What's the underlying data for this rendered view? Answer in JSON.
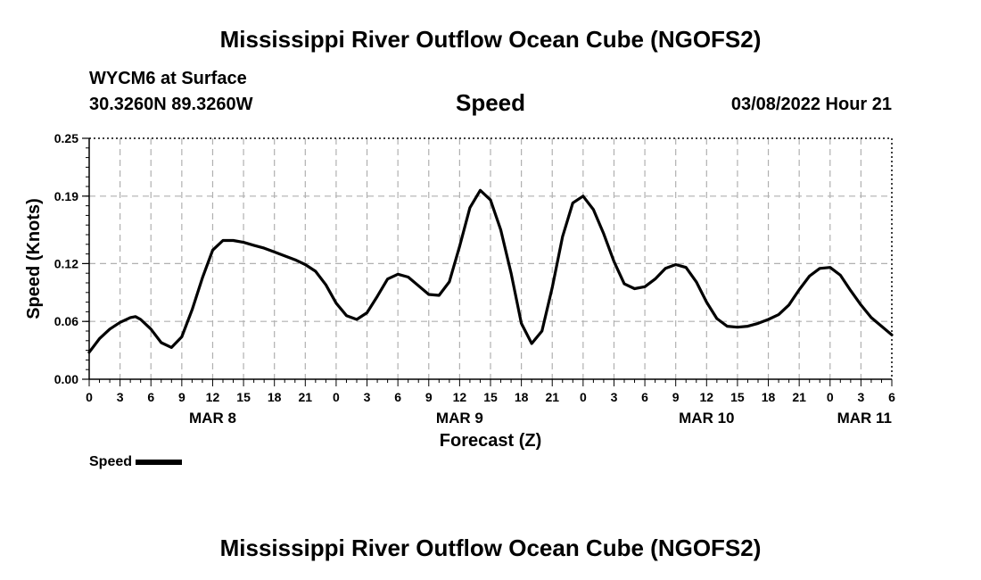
{
  "page": {
    "title_top": "Mississippi River Outflow Ocean Cube (NGOFS2)",
    "title_bottom": "Mississippi River Outflow Ocean Cube (NGOFS2)",
    "station": "WYCM6 at Surface",
    "coords": "30.3260N  89.3260W",
    "datetime": "03/08/2022 Hour 21"
  },
  "legend": {
    "label": "Speed"
  },
  "chart_data": {
    "type": "line",
    "title": "Speed",
    "xlabel": "Forecast (Z)",
    "ylabel": "Speed (Knots)",
    "ylim": [
      0,
      0.25
    ],
    "xlim": [
      0,
      78
    ],
    "x_unit": "hours from 00Z MAR 8",
    "yticks": [
      0.0,
      0.06,
      0.12,
      0.19,
      0.25
    ],
    "ytick_labels": [
      "0.00",
      "0.06",
      "0.12",
      "0.19",
      "0.25"
    ],
    "xticks": [
      0,
      3,
      6,
      9,
      12,
      15,
      18,
      21,
      24,
      27,
      30,
      33,
      36,
      39,
      42,
      45,
      48,
      51,
      54,
      57,
      60,
      63,
      66,
      69,
      72,
      75,
      78
    ],
    "xtick_labels": [
      "0",
      "3",
      "6",
      "9",
      "12",
      "15",
      "18",
      "21",
      "0",
      "3",
      "6",
      "9",
      "12",
      "15",
      "18",
      "21",
      "0",
      "3",
      "6",
      "9",
      "12",
      "15",
      "18",
      "21",
      "0",
      "3",
      "6"
    ],
    "date_labels": [
      {
        "label": "MAR 8",
        "x": 12
      },
      {
        "label": "MAR 9",
        "x": 36
      },
      {
        "label": "MAR 10",
        "x": 60
      },
      {
        "label": "MAR 11",
        "x": 78
      }
    ],
    "grid": true,
    "series": [
      {
        "name": "Speed",
        "color": "#000000",
        "x": [
          0,
          1,
          2,
          3,
          4,
          4.5,
          5,
          6,
          7,
          8,
          9,
          10,
          11,
          12,
          13,
          14,
          15,
          16,
          17,
          18,
          19,
          20,
          21,
          22,
          23,
          24,
          25,
          26,
          27,
          28,
          29,
          30,
          31,
          32,
          33,
          34,
          35,
          36,
          37,
          38,
          39,
          40,
          41,
          42,
          43,
          44,
          45,
          46,
          47,
          48,
          49,
          50,
          51,
          52,
          53,
          54,
          55,
          56,
          57,
          58,
          59,
          60,
          61,
          62,
          63,
          64,
          65,
          66,
          67,
          68,
          69,
          70,
          71,
          72,
          73,
          74,
          75,
          76,
          77,
          78
        ],
        "values": [
          0.028,
          0.042,
          0.052,
          0.059,
          0.064,
          0.065,
          0.062,
          0.052,
          0.038,
          0.033,
          0.044,
          0.072,
          0.105,
          0.134,
          0.144,
          0.144,
          0.142,
          0.139,
          0.136,
          0.132,
          0.128,
          0.124,
          0.119,
          0.112,
          0.098,
          0.079,
          0.066,
          0.062,
          0.069,
          0.086,
          0.104,
          0.109,
          0.106,
          0.097,
          0.088,
          0.087,
          0.101,
          0.138,
          0.178,
          0.196,
          0.186,
          0.155,
          0.11,
          0.058,
          0.037,
          0.05,
          0.095,
          0.148,
          0.183,
          0.19,
          0.176,
          0.151,
          0.122,
          0.099,
          0.094,
          0.096,
          0.104,
          0.115,
          0.119,
          0.116,
          0.101,
          0.08,
          0.063,
          0.055,
          0.054,
          0.055,
          0.058,
          0.062,
          0.067,
          0.077,
          0.093,
          0.107,
          0.115,
          0.116,
          0.108,
          0.092,
          0.077,
          0.064,
          0.055,
          0.046
        ]
      }
    ]
  }
}
